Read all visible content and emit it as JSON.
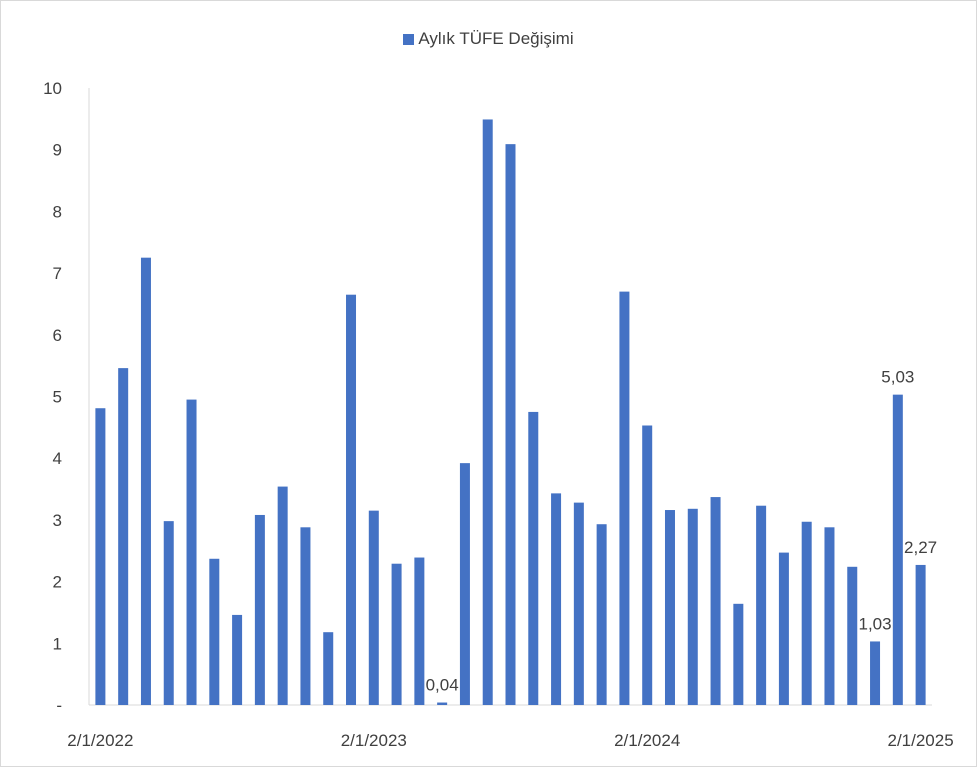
{
  "chart_data": {
    "type": "bar",
    "legend": {
      "label": "Aylık TÜFE Değişimi",
      "position": "top"
    },
    "color": "#4472c4",
    "ylim": [
      0,
      10
    ],
    "yticks": [
      {
        "value": 0,
        "label": "-"
      },
      {
        "value": 1,
        "label": "1"
      },
      {
        "value": 2,
        "label": "2"
      },
      {
        "value": 3,
        "label": "3"
      },
      {
        "value": 4,
        "label": "4"
      },
      {
        "value": 5,
        "label": "5"
      },
      {
        "value": 6,
        "label": "6"
      },
      {
        "value": 7,
        "label": "7"
      },
      {
        "value": 8,
        "label": "8"
      },
      {
        "value": 9,
        "label": "9"
      },
      {
        "value": 10,
        "label": "10"
      }
    ],
    "xtick_labels": [
      {
        "index": 0,
        "label": "2/1/2022"
      },
      {
        "index": 12,
        "label": "2/1/2023"
      },
      {
        "index": 24,
        "label": "2/1/2024"
      },
      {
        "index": 36,
        "label": "2/1/2025"
      }
    ],
    "x": [
      "2/1/2022",
      "3/1/2022",
      "4/1/2022",
      "5/1/2022",
      "6/1/2022",
      "7/1/2022",
      "8/1/2022",
      "9/1/2022",
      "10/1/2022",
      "11/1/2022",
      "12/1/2022",
      "1/1/2023",
      "2/1/2023",
      "3/1/2023",
      "4/1/2023",
      "5/1/2023",
      "6/1/2023",
      "7/1/2023",
      "8/1/2023",
      "9/1/2023",
      "10/1/2023",
      "11/1/2023",
      "12/1/2023",
      "1/1/2024",
      "2/1/2024",
      "3/1/2024",
      "4/1/2024",
      "5/1/2024",
      "6/1/2024",
      "7/1/2024",
      "8/1/2024",
      "9/1/2024",
      "10/1/2024",
      "11/1/2024",
      "12/1/2024",
      "1/1/2025",
      "2/1/2025"
    ],
    "series": [
      {
        "name": "Aylık TÜFE Değişimi",
        "values": [
          4.81,
          5.46,
          7.25,
          2.98,
          4.95,
          2.37,
          1.46,
          3.08,
          3.54,
          2.88,
          1.18,
          6.65,
          3.15,
          2.29,
          2.39,
          0.04,
          3.92,
          9.49,
          9.09,
          4.75,
          3.43,
          3.28,
          2.93,
          6.7,
          4.53,
          3.16,
          3.18,
          3.37,
          1.64,
          3.23,
          2.47,
          2.97,
          2.88,
          2.24,
          1.03,
          5.03,
          2.27
        ]
      }
    ],
    "data_labels": [
      {
        "index": 15,
        "label": "0,04"
      },
      {
        "index": 34,
        "label": "1,03"
      },
      {
        "index": 35,
        "label": "5,03"
      },
      {
        "index": 36,
        "label": "2,27"
      }
    ],
    "grid": false
  }
}
